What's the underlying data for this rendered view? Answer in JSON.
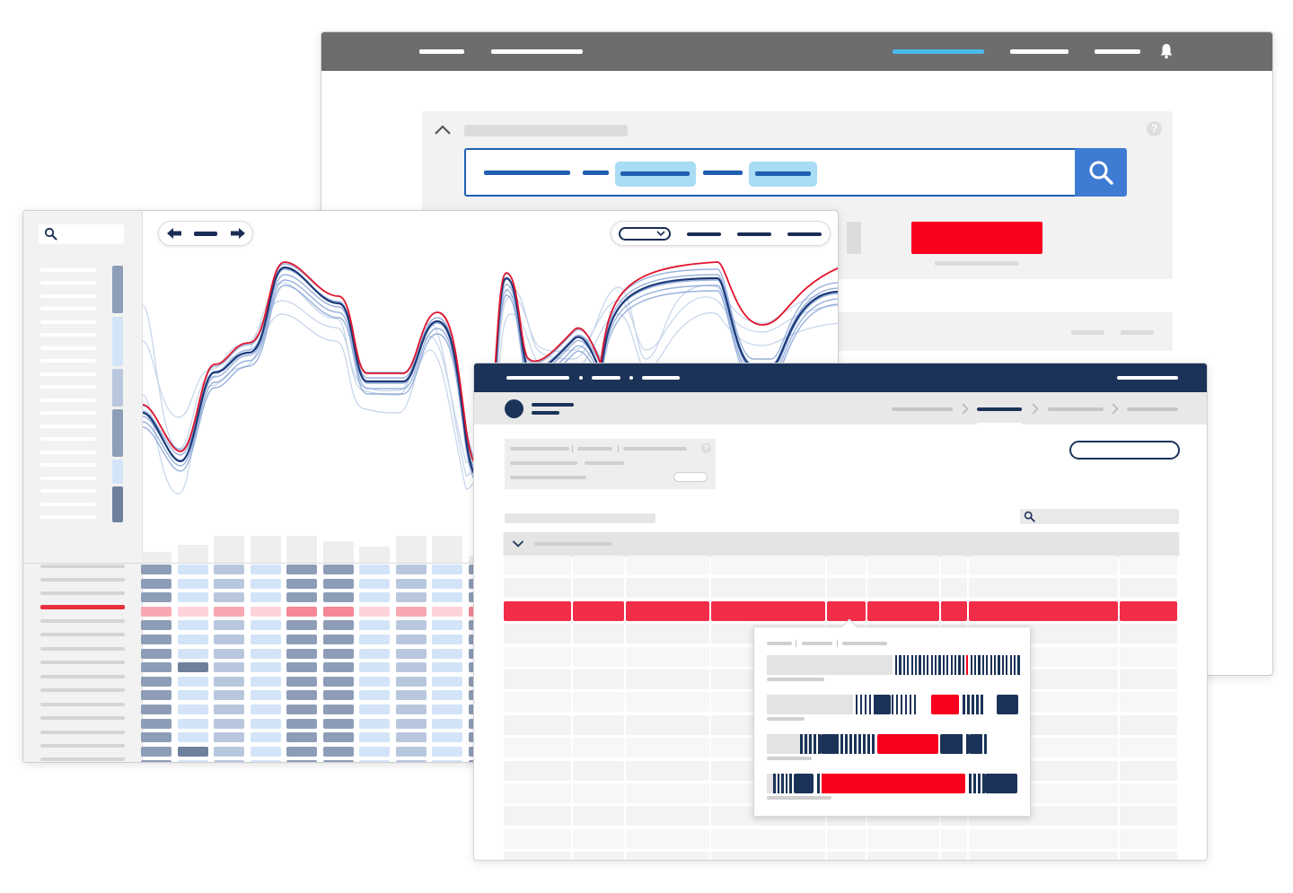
{
  "colors": {
    "gray_bar": "#6d6d6d",
    "navy": "#1b3358",
    "red": "#f8001e",
    "blue": "#3e7bd3",
    "cyan": "#4ab9ea",
    "chip": "#a9dcf5"
  },
  "icons": {
    "bell": "bell-icon",
    "search": "search-icon",
    "collapse": "chevron-up-icon",
    "help": "help-icon",
    "prev": "arrow-left-icon",
    "next": "arrow-right-icon",
    "dropdown": "chevron-down-icon",
    "breadcrumb_sep": "chevron-right-icon",
    "expand": "chevron-down-icon"
  },
  "back_window": {
    "help_glyph": "?"
  },
  "front_window": {
    "help_glyph": "?"
  }
}
